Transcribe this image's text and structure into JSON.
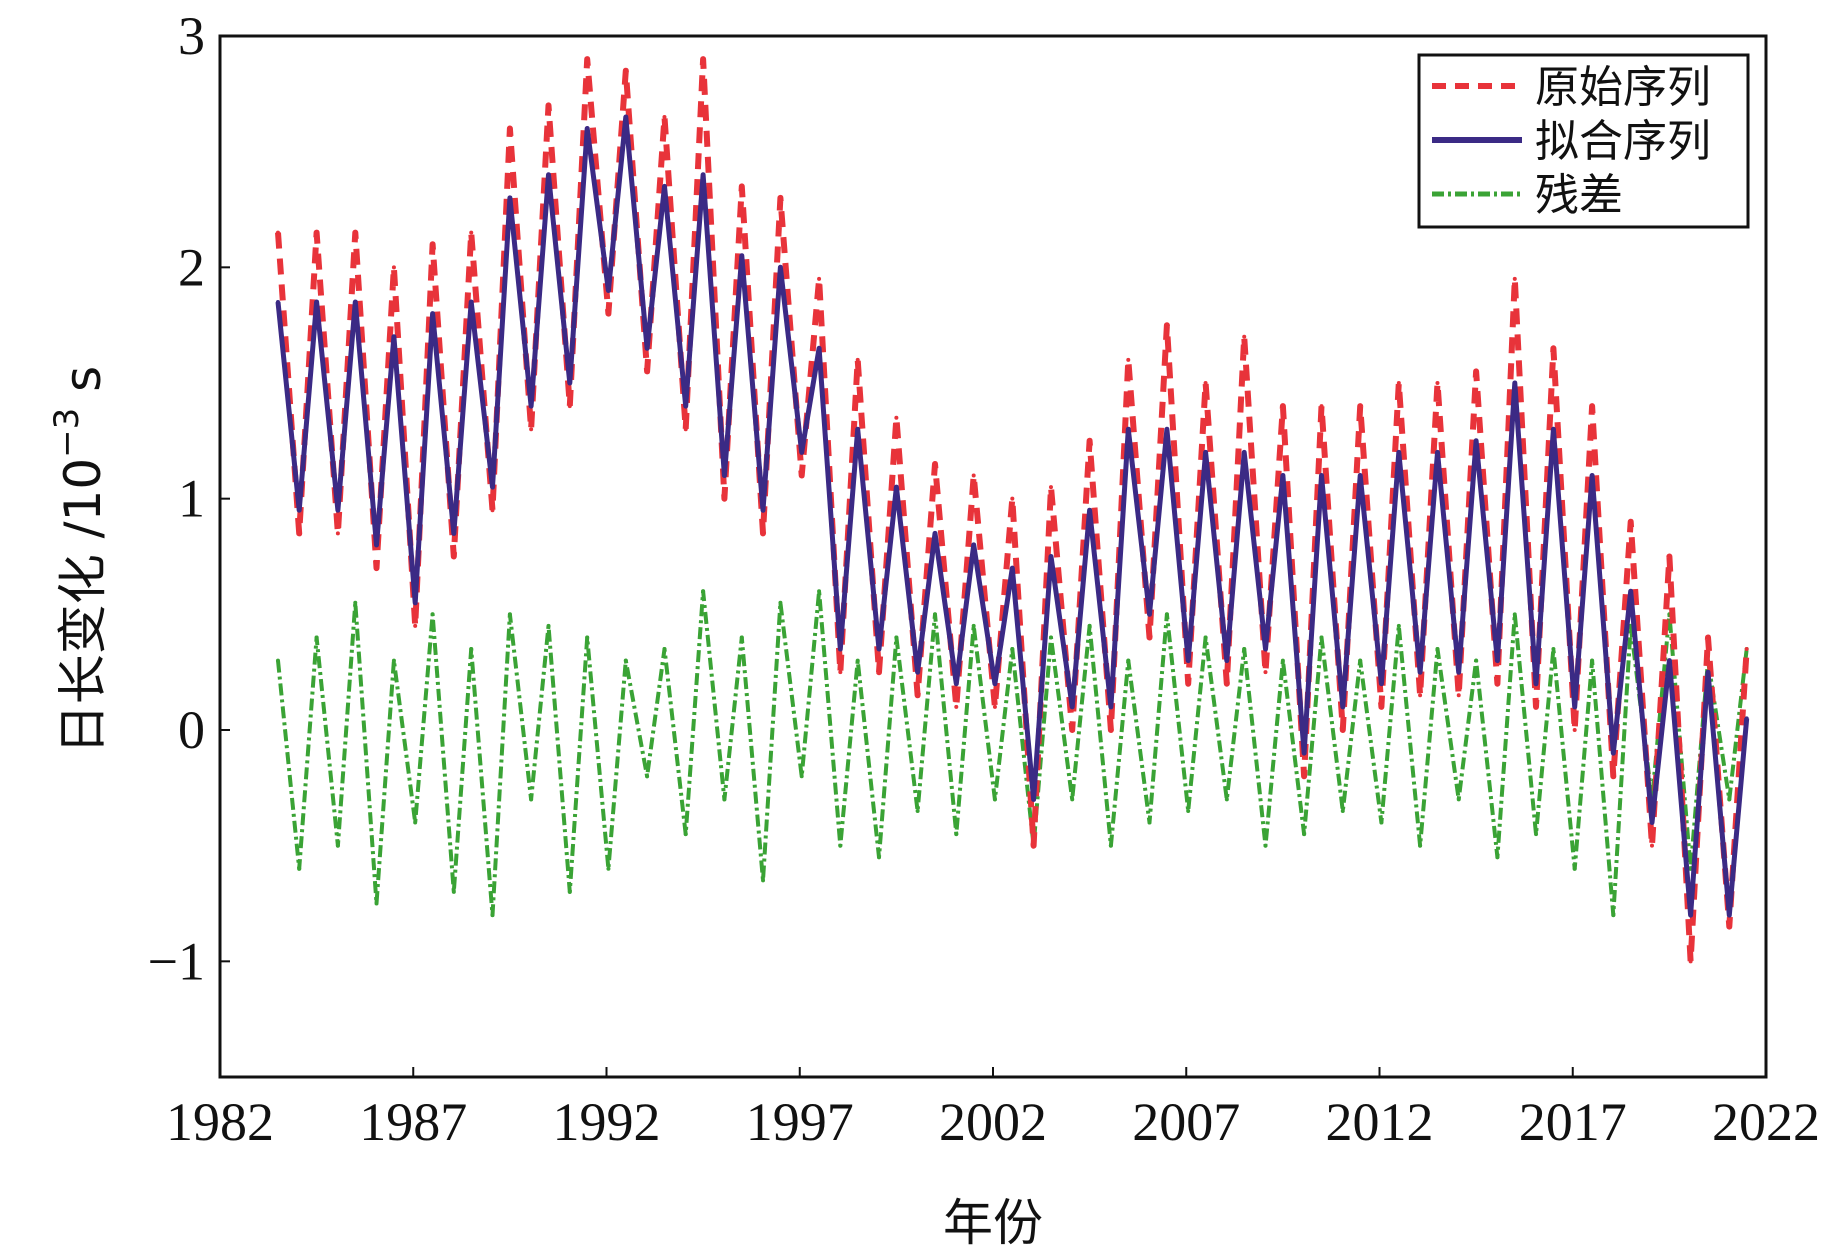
{
  "chart_data": {
    "type": "line",
    "title": "",
    "xlabel": "年份",
    "ylabel": "日长变化 /10",
    "ylabel_exponent": "−3",
    "ylabel_unit": " s",
    "xlim": [
      1982,
      2022
    ],
    "ylim": [
      -1.5,
      3
    ],
    "xticks": [
      1982,
      1987,
      1992,
      1997,
      2002,
      2007,
      2012,
      2017,
      2022
    ],
    "xtick_labels": [
      "1982",
      "1987",
      "1992",
      "1997",
      "2002",
      "2007",
      "2012",
      "2017",
      "2022"
    ],
    "yticks": [
      -1,
      0,
      1,
      2,
      3
    ],
    "ytick_labels": [
      "−1",
      "0",
      "1",
      "2",
      "3"
    ],
    "grid": false,
    "legend_position": "top-right",
    "x": [
      1983.5,
      1984.05,
      1984.5,
      1985.05,
      1985.5,
      1986.05,
      1986.5,
      1987.05,
      1987.5,
      1988.05,
      1988.5,
      1989.05,
      1989.5,
      1990.05,
      1990.5,
      1991.05,
      1991.5,
      1992.05,
      1992.5,
      1993.05,
      1993.5,
      1994.05,
      1994.5,
      1995.05,
      1995.5,
      1996.05,
      1996.5,
      1997.05,
      1997.5,
      1998.05,
      1998.5,
      1999.05,
      1999.5,
      2000.05,
      2000.5,
      2001.05,
      2001.5,
      2002.05,
      2002.5,
      2003.05,
      2003.5,
      2004.05,
      2004.5,
      2005.05,
      2005.5,
      2006.05,
      2006.5,
      2007.05,
      2007.5,
      2008.05,
      2008.5,
      2009.05,
      2009.5,
      2010.05,
      2010.5,
      2011.05,
      2011.5,
      2012.05,
      2012.5,
      2013.05,
      2013.5,
      2014.05,
      2014.5,
      2015.05,
      2015.5,
      2016.05,
      2016.5,
      2017.05,
      2017.5,
      2018.05,
      2018.5,
      2019.05,
      2019.5,
      2020.05,
      2020.5,
      2021.05,
      2021.5
    ],
    "series": [
      {
        "name": "原始序列",
        "color": "#e8333a",
        "style": "dashed",
        "values": [
          2.15,
          0.85,
          2.15,
          0.85,
          2.15,
          0.7,
          2.0,
          0.45,
          2.1,
          0.75,
          2.15,
          0.95,
          2.6,
          1.3,
          2.7,
          1.4,
          2.9,
          1.8,
          2.85,
          1.55,
          2.65,
          1.3,
          2.9,
          1.0,
          2.35,
          0.85,
          2.3,
          1.1,
          1.95,
          0.25,
          1.6,
          0.25,
          1.35,
          0.15,
          1.15,
          0.1,
          1.1,
          0.1,
          1.0,
          -0.5,
          1.05,
          0.0,
          1.25,
          0.0,
          1.6,
          0.4,
          1.75,
          0.2,
          1.5,
          0.2,
          1.7,
          0.25,
          1.4,
          -0.2,
          1.4,
          0.0,
          1.4,
          0.1,
          1.5,
          0.15,
          1.5,
          0.15,
          1.55,
          0.2,
          1.95,
          0.1,
          1.65,
          0.0,
          1.4,
          -0.2,
          0.9,
          -0.5,
          0.75,
          -1.0,
          0.4,
          -0.85,
          0.35
        ]
      },
      {
        "name": "拟合序列",
        "color": "#3b2a85",
        "style": "solid",
        "values": [
          1.85,
          0.95,
          1.85,
          0.95,
          1.85,
          0.8,
          1.7,
          0.55,
          1.8,
          0.85,
          1.85,
          1.05,
          2.3,
          1.4,
          2.4,
          1.5,
          2.6,
          1.9,
          2.65,
          1.65,
          2.35,
          1.4,
          2.4,
          1.1,
          2.05,
          0.95,
          2.0,
          1.2,
          1.65,
          0.35,
          1.3,
          0.35,
          1.05,
          0.25,
          0.85,
          0.2,
          0.8,
          0.2,
          0.7,
          -0.3,
          0.75,
          0.1,
          0.95,
          0.1,
          1.3,
          0.5,
          1.3,
          0.3,
          1.2,
          0.3,
          1.2,
          0.35,
          1.1,
          -0.1,
          1.1,
          0.1,
          1.1,
          0.2,
          1.2,
          0.25,
          1.2,
          0.25,
          1.25,
          0.3,
          1.5,
          0.2,
          1.3,
          0.1,
          1.1,
          -0.1,
          0.6,
          -0.4,
          0.3,
          -0.8,
          0.25,
          -0.8,
          0.05
        ]
      },
      {
        "name": "残差",
        "color": "#3aa335",
        "style": "dashdot",
        "values": [
          0.3,
          -0.6,
          0.4,
          -0.5,
          0.55,
          -0.75,
          0.3,
          -0.4,
          0.5,
          -0.7,
          0.35,
          -0.8,
          0.5,
          -0.3,
          0.45,
          -0.7,
          0.4,
          -0.6,
          0.3,
          -0.2,
          0.35,
          -0.45,
          0.6,
          -0.3,
          0.4,
          -0.65,
          0.55,
          -0.2,
          0.6,
          -0.5,
          0.3,
          -0.55,
          0.4,
          -0.35,
          0.5,
          -0.45,
          0.45,
          -0.3,
          0.35,
          -0.5,
          0.4,
          -0.3,
          0.45,
          -0.5,
          0.3,
          -0.4,
          0.5,
          -0.35,
          0.4,
          -0.3,
          0.35,
          -0.5,
          0.3,
          -0.45,
          0.4,
          -0.35,
          0.3,
          -0.4,
          0.45,
          -0.5,
          0.35,
          -0.3,
          0.3,
          -0.55,
          0.5,
          -0.45,
          0.35,
          -0.6,
          0.3,
          -0.8,
          0.45,
          -0.3,
          0.5,
          -0.6,
          0.3,
          -0.3,
          0.35
        ]
      }
    ]
  }
}
